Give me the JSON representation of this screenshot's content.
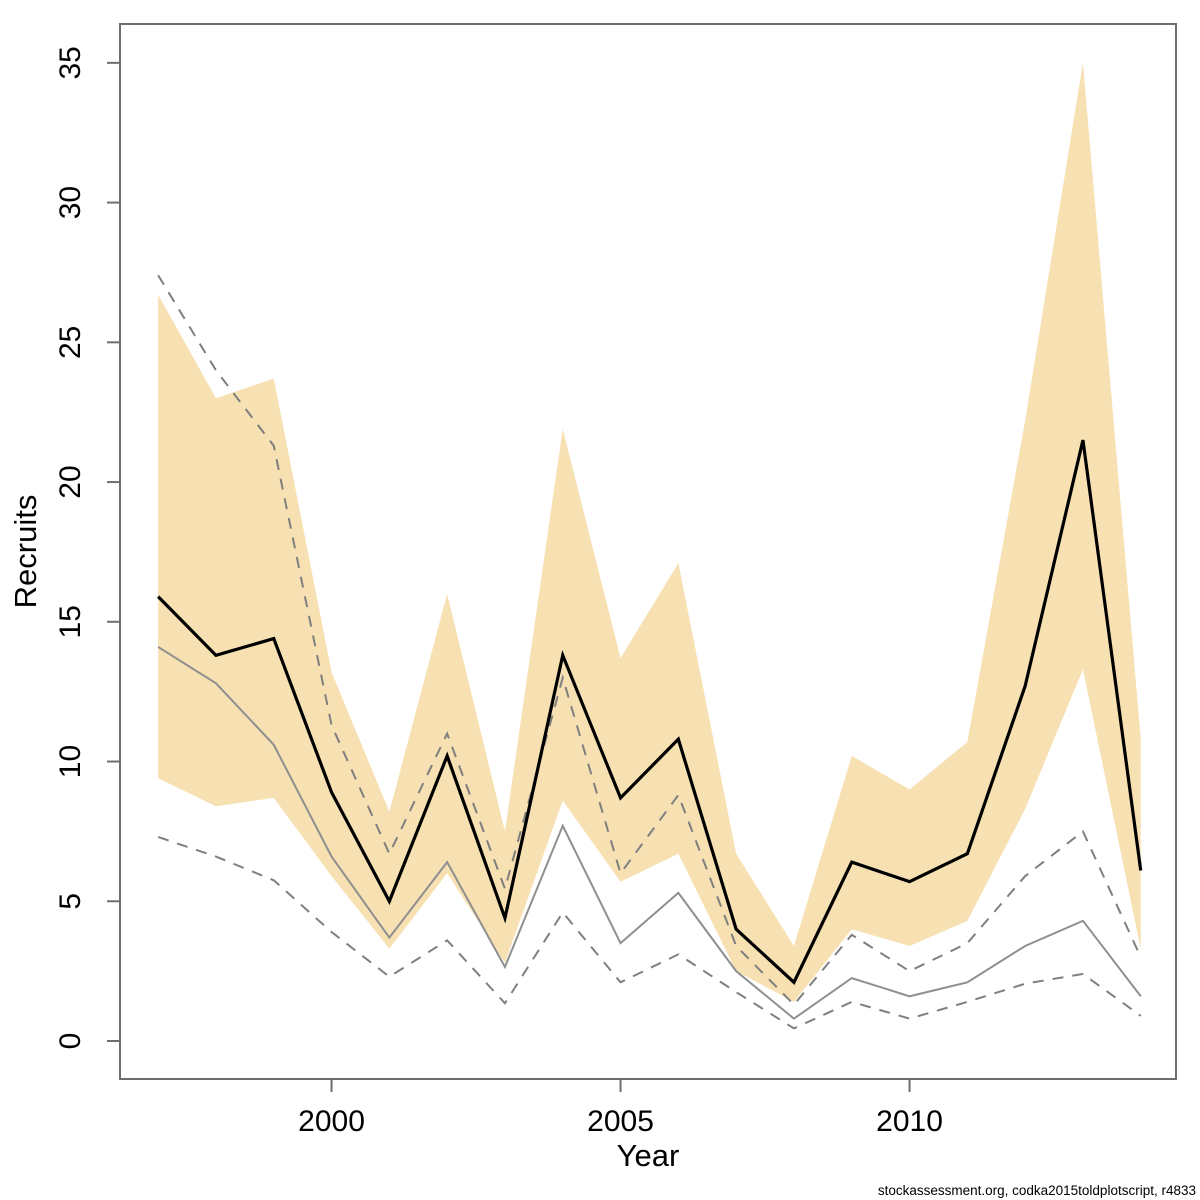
{
  "footnote": "stockassessment.org, codka2015toldplotscript, r4833",
  "colors": {
    "band_fill": "#f7e0b2",
    "estimate_line": "#000000",
    "observed_line": "#8f8f8f",
    "dashed_ci_line": "#7f7f7f",
    "box_stroke": "#6e6e6e",
    "label_text": "#000000"
  },
  "chart_data": {
    "type": "line",
    "title": "",
    "xlabel": "Year",
    "ylabel": "Recruits",
    "x": [
      1997,
      1998,
      1999,
      2000,
      2001,
      2002,
      2003,
      2004,
      2005,
      2006,
      2007,
      2008,
      2009,
      2010,
      2011,
      2012,
      2013,
      2014
    ],
    "series": [
      {
        "name": "estimate",
        "style": "solid-black",
        "values": [
          15.9,
          13.8,
          14.4,
          8.9,
          5.0,
          10.2,
          4.4,
          13.8,
          8.7,
          10.8,
          4.0,
          2.1,
          6.4,
          5.7,
          6.7,
          12.7,
          21.5,
          6.1
        ]
      },
      {
        "name": "estimate-ci-band-upper",
        "style": "band-edge",
        "values": [
          26.7,
          23.0,
          23.7,
          13.2,
          8.2,
          16.0,
          7.5,
          21.9,
          13.7,
          17.1,
          6.7,
          3.4,
          10.2,
          9.0,
          10.7,
          22.2,
          35.0,
          10.8
        ]
      },
      {
        "name": "estimate-ci-band-lower",
        "style": "band-edge",
        "values": [
          9.4,
          8.4,
          8.7,
          5.9,
          3.3,
          6.0,
          2.8,
          8.6,
          5.7,
          6.7,
          2.5,
          1.4,
          4.0,
          3.4,
          4.3,
          8.3,
          13.3,
          3.3
        ]
      },
      {
        "name": "observed",
        "style": "solid-gray",
        "values": [
          14.1,
          12.8,
          10.6,
          6.6,
          3.7,
          6.4,
          2.65,
          7.7,
          3.5,
          5.3,
          2.5,
          0.8,
          2.25,
          1.6,
          2.1,
          3.4,
          4.3,
          1.6
        ]
      },
      {
        "name": "observed-ci-upper",
        "style": "dashed-gray",
        "values": [
          27.4,
          24.0,
          21.3,
          11.3,
          6.7,
          11.0,
          5.45,
          13.0,
          6.0,
          8.8,
          3.4,
          1.3,
          3.8,
          2.5,
          3.5,
          5.9,
          7.5,
          3.0
        ]
      },
      {
        "name": "observed-ci-lower",
        "style": "dashed-gray",
        "values": [
          7.3,
          6.6,
          5.75,
          3.9,
          2.3,
          3.6,
          1.35,
          4.6,
          2.1,
          3.1,
          1.75,
          0.45,
          1.4,
          0.8,
          1.4,
          2.05,
          2.4,
          0.9
        ]
      }
    ],
    "xticks": [
      2000,
      2005,
      2010
    ],
    "yticks": [
      0,
      5,
      10,
      15,
      20,
      25,
      30,
      35
    ],
    "xlim": [
      1996.34,
      2014.61
    ],
    "ylim": [
      -1.36,
      36.39
    ],
    "grid": false,
    "legend": "none"
  }
}
